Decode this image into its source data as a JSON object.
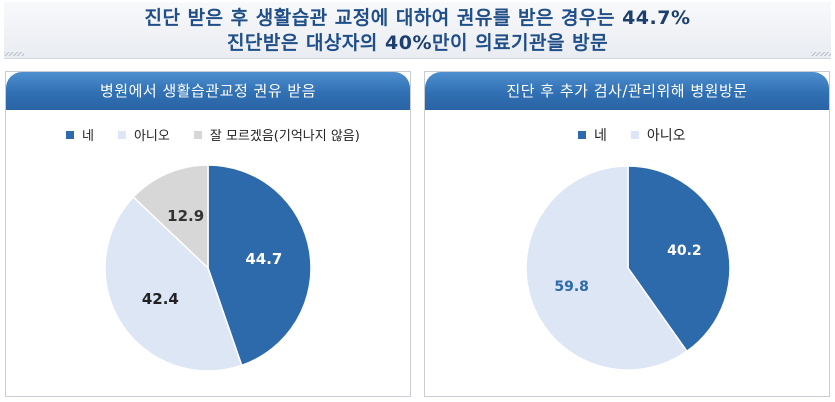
{
  "header": {
    "line1_text": "진단 받은 후 생활습관 교정에 대하여 권유를 받은 경우는 ",
    "line1_value": "44.7%",
    "line2_text_before": "진단받은 대상자의 ",
    "line2_value": "40%",
    "line2_text_after": "만이 의료기관을 방문"
  },
  "chart_data": [
    {
      "type": "pie",
      "title": "병원에서 생활습관교정 권유 받음",
      "categories": [
        "네",
        "아니오",
        "잘 모르겠음(기억나지 않음)"
      ],
      "values": [
        44.7,
        42.4,
        12.9
      ],
      "labels": [
        "44.7",
        "42.4",
        "12.9"
      ],
      "colors": [
        "#2d6aab",
        "#dce6f4",
        "#d7d7d7"
      ],
      "label_colors": [
        "#ffffff",
        "#222222",
        "#333333"
      ],
      "legend_position": "top"
    },
    {
      "type": "pie",
      "title": "진단 후 추가 검사/관리위해 병원방문",
      "categories": [
        "네",
        "아니오"
      ],
      "values": [
        40.2,
        59.8
      ],
      "labels": [
        "40.2",
        "59.8"
      ],
      "colors": [
        "#2d6aab",
        "#dce6f4"
      ],
      "label_colors": [
        "#ffffff",
        "#2d6aab"
      ],
      "legend_position": "top"
    }
  ]
}
